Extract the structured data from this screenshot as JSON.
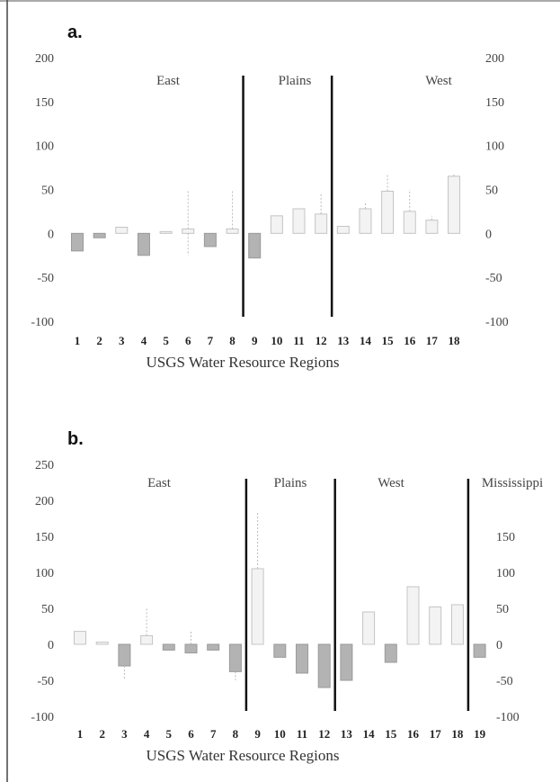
{
  "chart_data": [
    {
      "type": "bar",
      "panel_label": "a.",
      "xlabel": "USGS Water Resource Regions",
      "categories": [
        "1",
        "2",
        "3",
        "4",
        "5",
        "6",
        "7",
        "8",
        "9",
        "10",
        "11",
        "12",
        "13",
        "14",
        "15",
        "16",
        "17",
        "18"
      ],
      "values": [
        -20,
        -5,
        7,
        -25,
        2,
        5,
        -15,
        5,
        -28,
        20,
        28,
        22,
        8,
        28,
        48,
        25,
        15,
        65
      ],
      "error_high": [
        null,
        null,
        null,
        null,
        null,
        50,
        null,
        50,
        null,
        null,
        null,
        45,
        null,
        35,
        68,
        50,
        20,
        68
      ],
      "error_low": [
        null,
        null,
        null,
        null,
        null,
        -25,
        null,
        null,
        null,
        null,
        null,
        null,
        null,
        null,
        null,
        null,
        null,
        null
      ],
      "ylim": [
        -100,
        200
      ],
      "yticks": [
        -100,
        -50,
        0,
        50,
        100,
        150,
        200
      ],
      "regions": [
        {
          "name": "East",
          "from": 1,
          "to": 8
        },
        {
          "name": "Plains",
          "from": 9,
          "to": 12
        },
        {
          "name": "West",
          "from": 13,
          "to": 18
        }
      ],
      "dividers_after": [
        8,
        12
      ],
      "right_axis": true,
      "grid": false
    },
    {
      "type": "bar",
      "panel_label": "b.",
      "xlabel": "USGS Water Resource Regions",
      "categories": [
        "1",
        "2",
        "3",
        "4",
        "5",
        "6",
        "7",
        "8",
        "9",
        "10",
        "11",
        "12",
        "13",
        "14",
        "15",
        "16",
        "17",
        "18",
        "19"
      ],
      "values": [
        18,
        3,
        -30,
        12,
        -8,
        -12,
        -8,
        -38,
        105,
        -18,
        -40,
        -60,
        -50,
        45,
        -25,
        80,
        52,
        55,
        -18
      ],
      "error_high": [
        null,
        null,
        null,
        50,
        null,
        20,
        null,
        null,
        185,
        null,
        null,
        null,
        null,
        null,
        null,
        null,
        null,
        null,
        null
      ],
      "error_low": [
        null,
        null,
        -50,
        null,
        null,
        null,
        null,
        -50,
        null,
        null,
        null,
        null,
        null,
        null,
        null,
        null,
        null,
        null,
        null
      ],
      "ylim": [
        -100,
        250
      ],
      "yticks": [
        -100,
        -50,
        0,
        50,
        100,
        150,
        200,
        250
      ],
      "right_yticks": [
        -100,
        -50,
        0,
        50,
        100,
        150
      ],
      "regions": [
        {
          "name": "East",
          "from": 1,
          "to": 8
        },
        {
          "name": "Plains",
          "from": 9,
          "to": 12
        },
        {
          "name": "West",
          "from": 13,
          "to": 18
        },
        {
          "name": "Mississippi",
          "from": 19,
          "to": 19
        }
      ],
      "dividers_after": [
        8,
        12,
        18
      ],
      "right_axis": true,
      "grid": false
    }
  ]
}
